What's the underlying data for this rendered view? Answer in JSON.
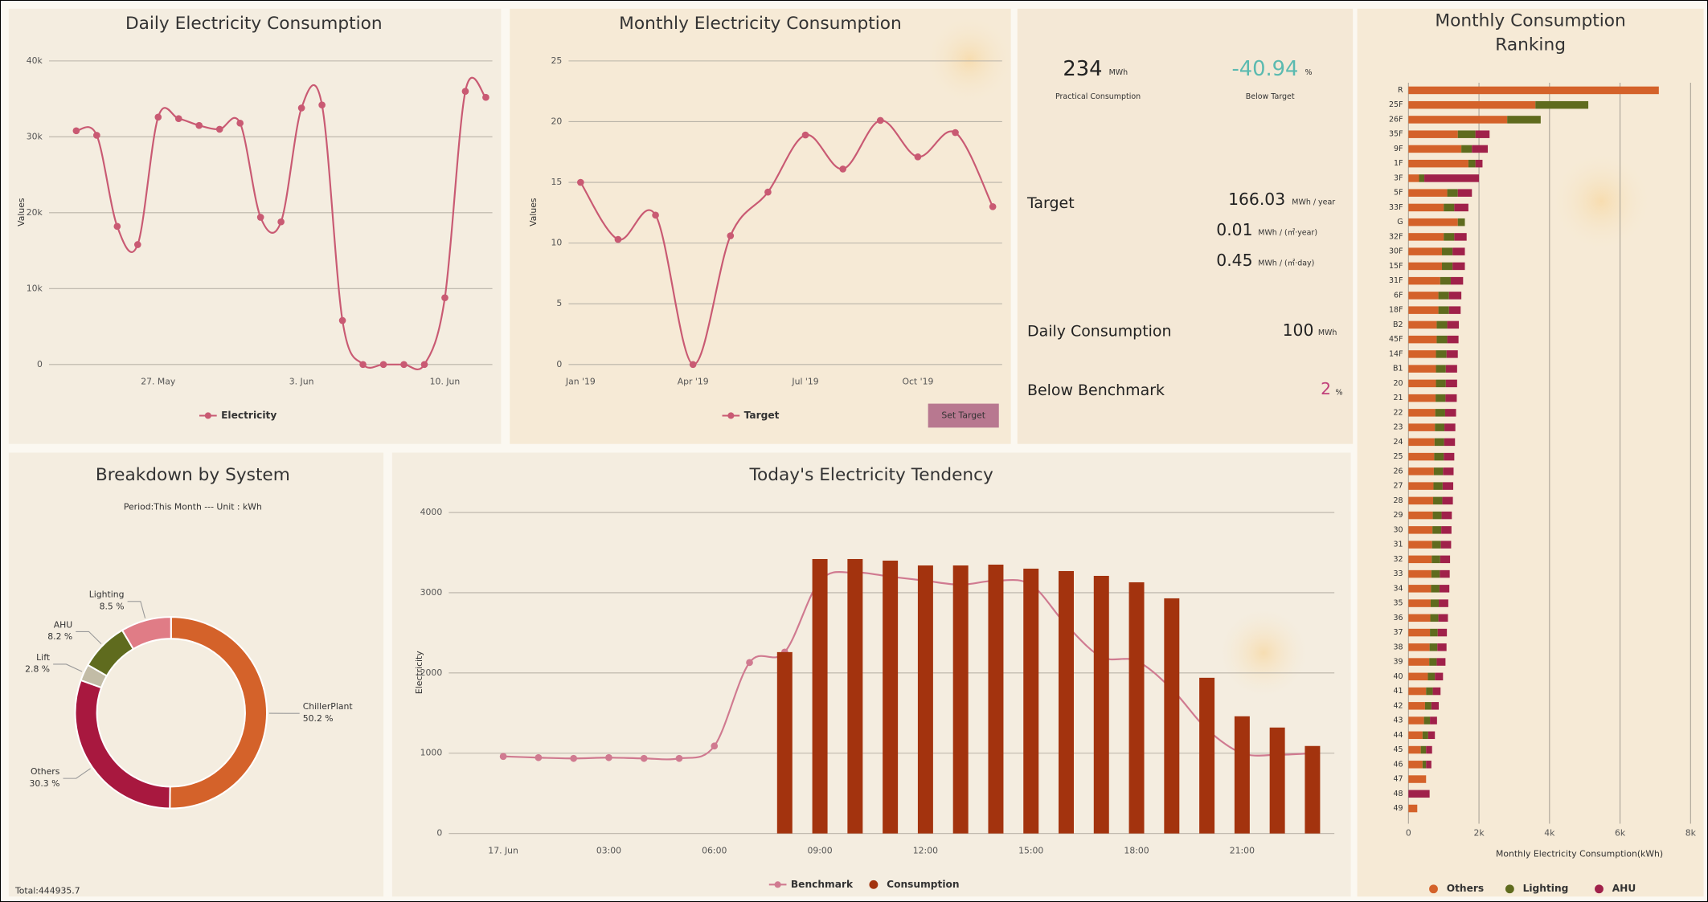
{
  "chart_data": [
    {
      "type": "line",
      "title": "Daily Electricity Consumption",
      "ylabel": "Values",
      "categories": [
        null,
        null,
        null,
        null,
        "27. May",
        null,
        null,
        null,
        null,
        null,
        null,
        "3. Jun",
        null,
        null,
        null,
        null,
        null,
        null,
        "10. Jun",
        null,
        null
      ],
      "series": [
        {
          "name": "Electricity",
          "color": "#c95a73",
          "values": [
            30800,
            30200,
            18200,
            15800,
            32600,
            32400,
            31500,
            31000,
            31800,
            19400,
            18800,
            33800,
            34200,
            5800,
            0,
            0,
            0,
            0,
            8800,
            36000,
            35200
          ]
        }
      ],
      "ylim": [
        0,
        40000
      ],
      "yticks": [
        0,
        {
          "value": 10000,
          "label": "10k"
        },
        {
          "value": 20000,
          "label": "20k"
        },
        {
          "value": 30000,
          "label": "30k"
        },
        {
          "value": 40000,
          "label": "40k"
        }
      ],
      "grid": true
    },
    {
      "type": "line",
      "title": "Monthly Electricity Consumption",
      "ylabel": "Values",
      "button": "Set Target",
      "categories": [
        "Jan '19",
        null,
        null,
        "Apr '19",
        null,
        null,
        "Jul '19",
        null,
        null,
        "Oct '19",
        null,
        null
      ],
      "series": [
        {
          "name": "Target",
          "color": "#c95a73",
          "values": [
            15,
            10.3,
            12.3,
            0,
            10.6,
            14.2,
            18.9,
            16.1,
            20.1,
            17.1,
            19.1,
            13
          ]
        }
      ],
      "ylim": [
        0,
        25
      ],
      "yticks": [
        0,
        5,
        10,
        15,
        20,
        25
      ],
      "grid": true
    },
    {
      "type": "pie",
      "donut": true,
      "title": "Breakdown by System",
      "subtitle": "Period:This Month --- Unit : kWh",
      "footnote": "Total:444935.7",
      "labels": [
        "ChillerPlant",
        "Others",
        "Lift",
        "AHU",
        "Lighting"
      ],
      "values": [
        50.2,
        30.3,
        2.8,
        8.2,
        8.5
      ],
      "value_labels": [
        "50.2 %",
        "30.3 %",
        "2.8 %",
        "8.2 %",
        "8.5 %"
      ],
      "colors": [
        "#d4622a",
        "#a8183f",
        "#c2bca6",
        "#5f6b1e",
        "#e07c86"
      ]
    },
    {
      "type": "bar",
      "title": "Today's Electricity Tendency",
      "ylabel": "Electricity",
      "categories": [
        "17. Jun",
        null,
        null,
        "03:00",
        null,
        null,
        "06:00",
        null,
        null,
        "09:00",
        null,
        null,
        "12:00",
        null,
        null,
        "15:00",
        null,
        null,
        "18:00",
        null,
        null,
        "21:00",
        null,
        null
      ],
      "series": [
        {
          "name": "Benchmark",
          "type": "line",
          "color": "#d07a90",
          "values": [
            960,
            945,
            935,
            945,
            935,
            935,
            1090,
            2130,
            2260,
            3150,
            3250,
            3200,
            3150,
            3100,
            3150,
            3100,
            2600,
            2200,
            2150,
            1800,
            1300,
            1000,
            980,
            1000
          ]
        },
        {
          "name": "Consumption",
          "type": "bar",
          "color": "#a3330e",
          "values": [
            null,
            null,
            null,
            null,
            null,
            null,
            null,
            null,
            2260,
            3420,
            3420,
            3400,
            3340,
            3340,
            3350,
            3300,
            3270,
            3210,
            3130,
            2930,
            1940,
            1460,
            1320,
            1090
          ]
        }
      ],
      "ylim": [
        0,
        4000
      ],
      "yticks": [
        0,
        1000,
        2000,
        3000,
        4000
      ],
      "grid": true
    },
    {
      "type": "bar",
      "horizontal": true,
      "stacked": true,
      "title": "Monthly Consumption Ranking",
      "xlabel": "Monthly Electricity Consumption(kWh)",
      "categories": [
        "R",
        "25F",
        "26F",
        "35F",
        "9F",
        "1F",
        "3F",
        "5F",
        "33F",
        "G",
        "32F",
        "30F",
        "15F",
        "31F",
        "6F",
        "18F",
        "B2",
        "45F",
        "14F",
        "B1",
        "20",
        "21",
        "22",
        "23",
        "24",
        "25",
        "26",
        "27",
        "28",
        "29",
        "30",
        "31",
        "32",
        "33",
        "34",
        "35",
        "36",
        "37",
        "38",
        "39",
        "40",
        "41",
        "42",
        "43",
        "44",
        "45",
        "46",
        "47",
        "48",
        "49"
      ],
      "series": [
        {
          "name": "Others",
          "color": "#d4622a",
          "values": [
            7100,
            3600,
            2800,
            1400,
            1500,
            1700,
            300,
            1100,
            1000,
            1400,
            1000,
            950,
            950,
            900,
            850,
            850,
            800,
            800,
            780,
            780,
            780,
            770,
            760,
            750,
            740,
            730,
            720,
            710,
            700,
            690,
            680,
            670,
            660,
            650,
            640,
            630,
            620,
            610,
            600,
            590,
            550,
            500,
            470,
            440,
            400,
            350,
            400,
            500,
            0,
            250
          ]
        },
        {
          "name": "Lighting",
          "color": "#5f6b1e",
          "values": [
            0,
            1500,
            950,
            500,
            300,
            200,
            150,
            300,
            300,
            200,
            300,
            300,
            300,
            300,
            300,
            300,
            300,
            300,
            300,
            280,
            280,
            280,
            280,
            270,
            270,
            270,
            260,
            260,
            260,
            250,
            250,
            250,
            240,
            240,
            240,
            230,
            230,
            220,
            220,
            210,
            200,
            190,
            180,
            170,
            160,
            150,
            100,
            0,
            0,
            0
          ]
        },
        {
          "name": "AHU",
          "color": "#a0214a",
          "values": [
            0,
            0,
            0,
            400,
            450,
            200,
            1550,
            400,
            400,
            0,
            350,
            350,
            350,
            350,
            350,
            330,
            330,
            320,
            320,
            320,
            320,
            320,
            310,
            310,
            310,
            300,
            300,
            300,
            300,
            290,
            290,
            290,
            280,
            280,
            280,
            270,
            270,
            260,
            260,
            250,
            230,
            220,
            210,
            200,
            190,
            170,
            150,
            0,
            600,
            0
          ]
        }
      ],
      "xlim": [
        0,
        8000
      ],
      "xticks": [
        0,
        {
          "value": 2000,
          "label": "2k"
        },
        {
          "value": 4000,
          "label": "4k"
        },
        {
          "value": 6000,
          "label": "6k"
        },
        {
          "value": 8000,
          "label": "8k"
        }
      ],
      "grid": true
    }
  ],
  "kpi": {
    "practical": {
      "value": 234,
      "unit": "MWh",
      "label": "Practical Consumption"
    },
    "below_target": {
      "value": -40.94,
      "unit": "%",
      "label": "Below Target"
    },
    "target": {
      "label": "Target",
      "rows": [
        {
          "value": 166.03,
          "unit": "MWh / year"
        },
        {
          "value": 0.01,
          "unit": "MWh / (㎡·year)"
        },
        {
          "value": 0.45,
          "unit": "MWh / (㎡·day)"
        }
      ]
    },
    "daily": {
      "label": "Daily Consumption",
      "value": 100,
      "unit": "MWh"
    },
    "benchmark": {
      "label": "Below Benchmark",
      "value": 2,
      "unit": "%"
    }
  }
}
